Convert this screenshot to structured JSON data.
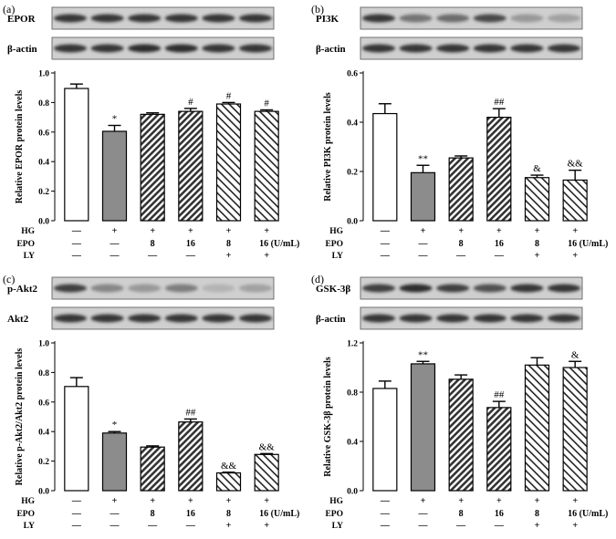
{
  "colors": {
    "black": "#000000",
    "gray": "#8c8c8c",
    "white": "#ffffff",
    "blot_bg": "#cfcfcf",
    "band": "#1a1a1a"
  },
  "panels": [
    {
      "letter": "(a)",
      "blots": [
        "EPOR",
        "β-actin"
      ],
      "band_strength": [
        [
          0.85,
          0.85,
          0.85,
          0.85,
          0.85,
          0.85
        ],
        [
          0.85,
          0.85,
          0.9,
          0.9,
          0.85,
          0.85
        ]
      ]
    },
    {
      "letter": "(b)",
      "blots": [
        "PI3K",
        "β-actin"
      ],
      "band_strength": [
        [
          0.85,
          0.5,
          0.55,
          0.75,
          0.3,
          0.25
        ],
        [
          0.85,
          0.85,
          0.85,
          0.85,
          0.85,
          0.85
        ]
      ]
    },
    {
      "letter": "(c)",
      "blots": [
        "p-Akt2",
        "Akt2"
      ],
      "band_strength": [
        [
          0.8,
          0.4,
          0.3,
          0.45,
          0.15,
          0.25
        ],
        [
          0.85,
          0.85,
          0.85,
          0.85,
          0.85,
          0.85
        ]
      ]
    },
    {
      "letter": "(d)",
      "blots": [
        "GSK-3β",
        "β-actin"
      ],
      "band_strength": [
        [
          0.8,
          0.9,
          0.8,
          0.7,
          0.85,
          0.85
        ],
        [
          0.85,
          0.85,
          0.85,
          0.85,
          0.85,
          0.85
        ]
      ]
    }
  ],
  "conditions": {
    "row_labels": [
      "HG",
      "EPO",
      "LY"
    ],
    "rows": [
      [
        "—",
        "+",
        "+",
        "+",
        "+",
        "+"
      ],
      [
        "—",
        "—",
        "8",
        "16",
        "8",
        "16 (U/mL)"
      ],
      [
        "—",
        "—",
        "—",
        "—",
        "+",
        "+"
      ]
    ]
  },
  "chart_data": [
    {
      "type": "bar",
      "ylabel": "Relative EPOR protein levels",
      "ylim": [
        0,
        1.0
      ],
      "yticks": [
        "0.0",
        "0.2",
        "0.4",
        "0.6",
        "0.8",
        "1.0"
      ],
      "ytick_values": [
        0,
        0.2,
        0.4,
        0.6,
        0.8,
        1.0
      ],
      "values": [
        0.895,
        0.605,
        0.72,
        0.74,
        0.79,
        0.74
      ],
      "errors": [
        0.03,
        0.04,
        0.01,
        0.02,
        0.01,
        0.01
      ],
      "significance": [
        "",
        "*",
        "",
        "#",
        "#",
        "#"
      ],
      "patterns": [
        "white",
        "gray",
        "hatch-right",
        "hatch-right",
        "hatch-left",
        "hatch-left"
      ]
    },
    {
      "type": "bar",
      "ylabel": "Relative PI3K protein levels",
      "ylim": [
        0,
        0.6
      ],
      "yticks": [
        "0.0",
        "0.2",
        "0.4",
        "0.6"
      ],
      "ytick_values": [
        0,
        0.2,
        0.4,
        0.6
      ],
      "values": [
        0.435,
        0.195,
        0.255,
        0.42,
        0.175,
        0.165
      ],
      "errors": [
        0.04,
        0.03,
        0.008,
        0.035,
        0.01,
        0.04
      ],
      "significance": [
        "",
        "**",
        "",
        "##",
        "&",
        "&&"
      ],
      "patterns": [
        "white",
        "gray",
        "hatch-right",
        "hatch-right",
        "hatch-left",
        "hatch-left"
      ]
    },
    {
      "type": "bar",
      "ylabel": "Relative p-Akt2/Akt2 protein levels",
      "ylim": [
        0,
        1.0
      ],
      "yticks": [
        "0.0",
        "0.2",
        "0.4",
        "0.6",
        "0.8",
        "1.0"
      ],
      "ytick_values": [
        0,
        0.2,
        0.4,
        0.6,
        0.8,
        1.0
      ],
      "values": [
        0.705,
        0.39,
        0.295,
        0.465,
        0.12,
        0.245
      ],
      "errors": [
        0.06,
        0.01,
        0.008,
        0.02,
        0.005,
        0.006
      ],
      "significance": [
        "",
        "*",
        "",
        "##",
        "&&",
        "&&"
      ],
      "patterns": [
        "white",
        "gray",
        "hatch-right",
        "hatch-right",
        "hatch-left",
        "hatch-left"
      ]
    },
    {
      "type": "bar",
      "ylabel": "Relative GSK-3β protein levels",
      "ylim": [
        0,
        1.2
      ],
      "yticks": [
        "0.0",
        "0.4",
        "0.8",
        "1.2"
      ],
      "ytick_values": [
        0,
        0.4,
        0.8,
        1.2
      ],
      "values": [
        0.83,
        1.03,
        0.905,
        0.675,
        1.02,
        1.0
      ],
      "errors": [
        0.06,
        0.02,
        0.035,
        0.05,
        0.06,
        0.05
      ],
      "significance": [
        "",
        "**",
        "",
        "##",
        "",
        "&"
      ],
      "patterns": [
        "white",
        "gray",
        "hatch-right",
        "hatch-right",
        "hatch-left",
        "hatch-left"
      ]
    }
  ]
}
